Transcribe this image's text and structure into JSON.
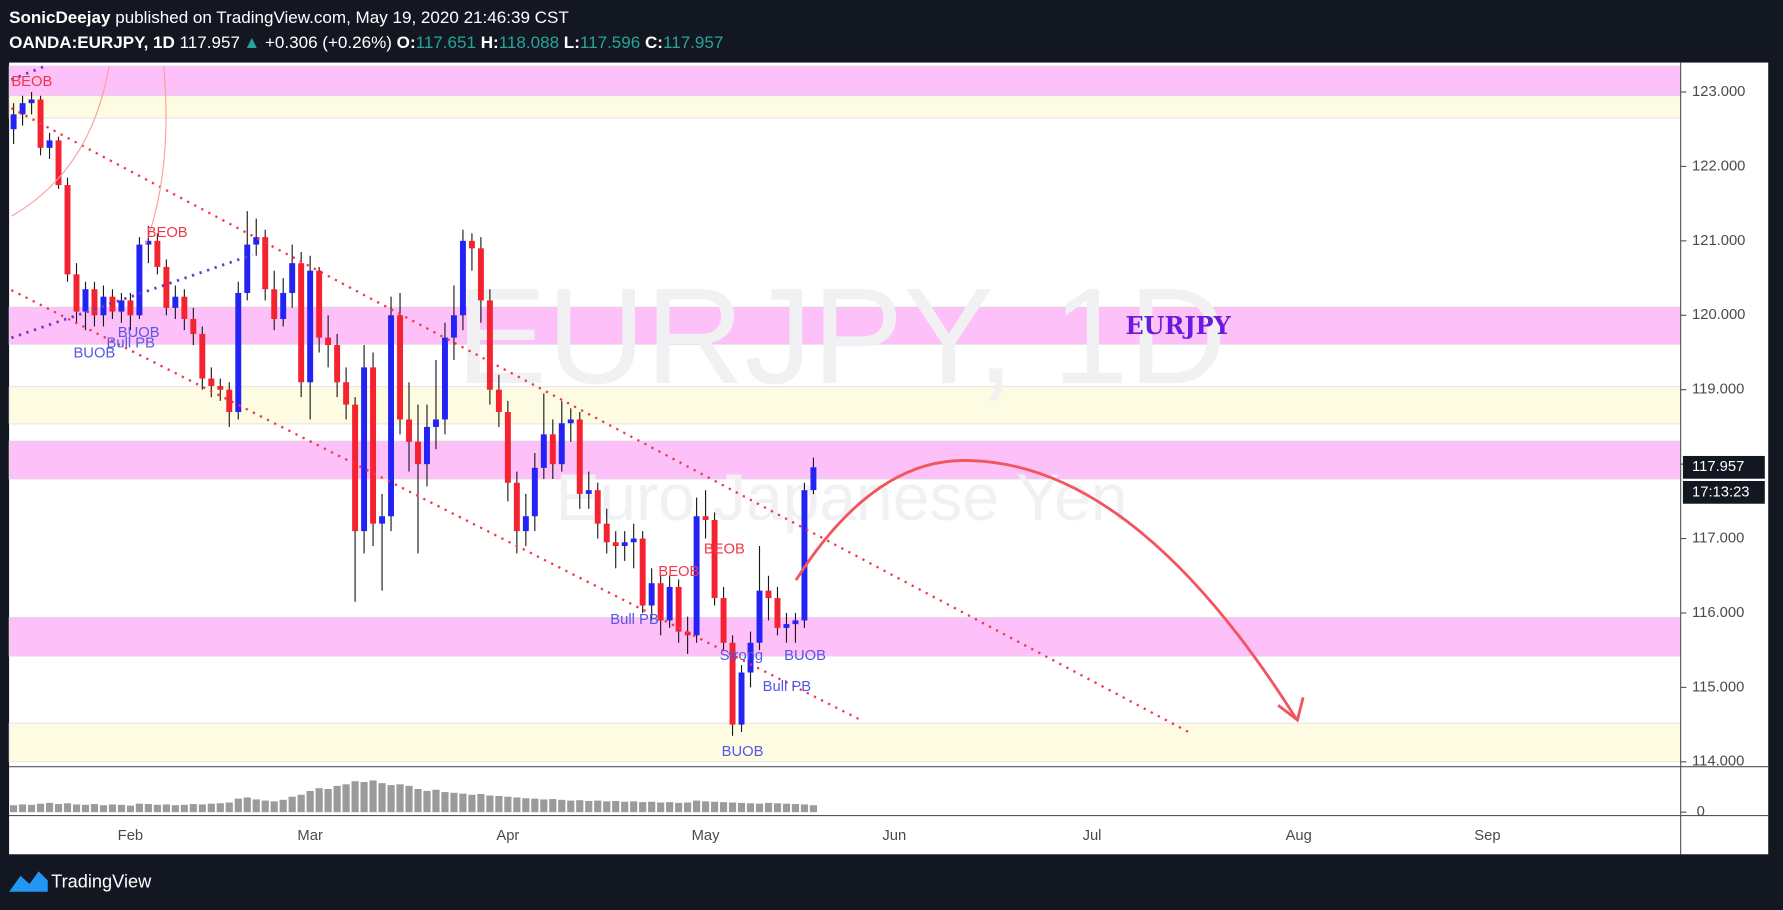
{
  "header": {
    "author": "SonicDeejay",
    "published": "published on TradingView.com, May 19, 2020 21:46:39 CST",
    "symbol": "OANDA:EURJPY, 1D",
    "arrow": "▲",
    "change": "+0.306 (+0.26%)",
    "o_label": "O:",
    "h_label": "H:",
    "l_label": "L:",
    "c_label": "C:"
  },
  "chart_data": {
    "type": "candlestick",
    "watermark": "EURJPY, 1D",
    "watermark_subtitle": "Euro Japanese Yen",
    "up_color": "#2323f5",
    "down_color": "#f5222f",
    "wick_color": "#1a1a1a",
    "volume_color": "#9b9b9b",
    "ylim": [
      113.95,
      123.35
    ],
    "yticks": [
      {
        "value": 114,
        "label": "114.000"
      },
      {
        "value": 115,
        "label": "115.000"
      },
      {
        "value": 116,
        "label": "116.000"
      },
      {
        "value": 117,
        "label": "117.000"
      },
      {
        "value": 118,
        "label": "118.000"
      },
      {
        "value": 119,
        "label": "119.000"
      },
      {
        "value": 120,
        "label": "120.000"
      },
      {
        "value": 121,
        "label": "121.000"
      },
      {
        "value": 122,
        "label": "122.000"
      },
      {
        "value": 123,
        "label": "123.000"
      }
    ],
    "volume_ylim": [
      0,
      100
    ],
    "volume_yticks": [
      0
    ],
    "grid": false,
    "countdown": "17:13:23",
    "zones": [
      {
        "from": 122.95,
        "to": 123.35,
        "color": "#fdc0f8"
      },
      {
        "from": 122.65,
        "to": 122.95,
        "color": "#fdfce2"
      },
      {
        "from": 119.61,
        "to": 120.11,
        "color": "#fdc0f8"
      },
      {
        "from": 118.54,
        "to": 119.04,
        "color": "#fdfce2"
      },
      {
        "from": 117.8,
        "to": 118.31,
        "color": "#fdc0f8"
      },
      {
        "from": 115.42,
        "to": 115.94,
        "color": "#fdc0f8"
      },
      {
        "from": 114.0,
        "to": 114.52,
        "color": "#fdfce2"
      }
    ],
    "annotations": [
      {
        "text": "BEOB",
        "color": "#f23645"
      },
      {
        "text": "BEOB",
        "color": "#f23645"
      },
      {
        "text": "BUOB",
        "color": "#5656e8"
      },
      {
        "text": "Bull PB",
        "color": "#5656e8"
      },
      {
        "text": "BUOB",
        "color": "#5656e8"
      },
      {
        "text": "BEOB",
        "color": "#f23645"
      },
      {
        "text": "BEOB",
        "color": "#f23645"
      },
      {
        "text": "Bull PB",
        "color": "#5656e8"
      },
      {
        "text": "Strong",
        "color": "#5656e8"
      },
      {
        "text": "BUOB",
        "color": "#5656e8"
      },
      {
        "text": "Bull PB",
        "color": "#5656e8"
      },
      {
        "text": "BUOB",
        "color": "#5656e8"
      },
      {
        "text": "EURJPY",
        "color": "#6a1be0"
      }
    ],
    "categories": [
      null,
      null,
      null,
      null,
      null,
      null,
      null,
      null,
      null,
      null,
      null,
      null,
      null,
      "Feb",
      null,
      null,
      null,
      null,
      null,
      null,
      null,
      null,
      null,
      null,
      null,
      null,
      null,
      null,
      null,
      null,
      null,
      null,
      null,
      "Mar",
      null,
      null,
      null,
      null,
      null,
      null,
      null,
      null,
      null,
      null,
      null,
      null,
      null,
      null,
      null,
      null,
      null,
      null,
      null,
      null,
      null,
      "Apr",
      null,
      null,
      null,
      null,
      null,
      null,
      null,
      null,
      null,
      null,
      null,
      null,
      null,
      null,
      null,
      null,
      null,
      null,
      null,
      null,
      null,
      "May",
      null,
      null,
      null,
      null,
      null,
      null,
      null,
      null,
      null,
      null,
      null,
      null,
      null,
      null,
      null,
      null,
      null,
      null,
      null,
      null,
      "Jun",
      null,
      null,
      null,
      null,
      null,
      null,
      null,
      null,
      null,
      null,
      null,
      null,
      null,
      null,
      null,
      null,
      null,
      null,
      null,
      null,
      null,
      "Jul",
      null,
      null,
      null,
      null,
      null,
      null,
      null,
      null,
      null,
      null,
      null,
      null,
      null,
      null,
      null,
      null,
      null,
      null,
      null,
      null,
      null,
      null,
      "Aug",
      null,
      null,
      null,
      null,
      null,
      null,
      null,
      null,
      null,
      null,
      null,
      null,
      null,
      null,
      null,
      null,
      null,
      null,
      null,
      null,
      "Sep",
      null,
      null,
      null,
      null,
      null,
      null,
      null,
      null,
      null,
      null,
      null,
      null,
      null,
      null,
      null,
      null,
      null,
      null,
      null,
      null,
      null
    ],
    "open": [
      122.5,
      122.7,
      122.85,
      122.9,
      122.25,
      122.35,
      121.75,
      120.55,
      120.05,
      120.35,
      120.0,
      120.25,
      120.05,
      120.2,
      120.0,
      120.95,
      121.0,
      120.65,
      120.1,
      120.25,
      119.95,
      119.75,
      119.15,
      119.05,
      119.0,
      118.7,
      120.3,
      120.95,
      121.05,
      120.35,
      119.95,
      120.3,
      120.7,
      119.1,
      120.6,
      119.7,
      119.6,
      119.1,
      118.8,
      117.1,
      119.3,
      117.2,
      117.3,
      120.0,
      118.6,
      118.3,
      118.0,
      118.5,
      118.6,
      119.7,
      120.0,
      121.0,
      120.9,
      120.2,
      119.0,
      118.7,
      117.75,
      117.1,
      117.3,
      117.95,
      118.4,
      118.0,
      118.55,
      118.6,
      117.6,
      117.65,
      117.2,
      116.95,
      116.9,
      116.95,
      117.0,
      116.1,
      116.4,
      115.9,
      116.35,
      115.75,
      115.7,
      117.3,
      117.25,
      116.2,
      115.6,
      114.5,
      115.2,
      115.6,
      116.3,
      116.2,
      115.8,
      115.85,
      115.9,
      117.651,
      null,
      null,
      null,
      null,
      null,
      null,
      null,
      null,
      null,
      null,
      null,
      null,
      null,
      null,
      null,
      null,
      null,
      null,
      null,
      null,
      null,
      null,
      null,
      null,
      null,
      null,
      null,
      null,
      null,
      null,
      null,
      null,
      null,
      null,
      null,
      null,
      null,
      null,
      null,
      null,
      null,
      null,
      null,
      null,
      null,
      null,
      null,
      null,
      null,
      null,
      null,
      null,
      null,
      null,
      null,
      null,
      null,
      null,
      null,
      null,
      null,
      null,
      null,
      null,
      null,
      null,
      null,
      null,
      null,
      null,
      null,
      null,
      null,
      null,
      null,
      null,
      null,
      null,
      null,
      null,
      null,
      null,
      null,
      null,
      null,
      null,
      null,
      null,
      null,
      null,
      null,
      null,
      null,
      null,
      null,
      null
    ],
    "high": [
      122.85,
      122.95,
      123.0,
      122.95,
      122.45,
      122.4,
      121.85,
      120.7,
      120.45,
      120.45,
      120.4,
      120.35,
      120.3,
      120.3,
      121.05,
      121.2,
      121.1,
      120.75,
      120.4,
      120.35,
      120.1,
      119.85,
      119.3,
      119.15,
      119.1,
      120.45,
      121.4,
      121.3,
      121.15,
      120.6,
      120.5,
      120.95,
      120.85,
      120.8,
      120.65,
      120.0,
      119.75,
      119.3,
      118.9,
      119.6,
      119.5,
      117.6,
      120.25,
      120.3,
      119.1,
      118.8,
      118.8,
      119.4,
      119.9,
      120.4,
      121.15,
      121.1,
      121.05,
      120.35,
      119.2,
      118.85,
      117.9,
      117.6,
      118.15,
      118.95,
      118.6,
      118.85,
      118.75,
      118.7,
      117.9,
      117.75,
      117.4,
      117.1,
      117.1,
      117.2,
      117.1,
      116.6,
      116.5,
      116.5,
      116.45,
      115.95,
      117.55,
      117.65,
      117.35,
      116.35,
      115.7,
      115.3,
      115.75,
      116.9,
      116.5,
      116.35,
      116.0,
      116.0,
      117.75,
      118.088,
      null,
      null,
      null,
      null,
      null,
      null,
      null,
      null,
      null,
      null,
      null,
      null,
      null,
      null,
      null,
      null,
      null,
      null,
      null,
      null,
      null,
      null,
      null,
      null,
      null,
      null,
      null,
      null,
      null,
      null,
      null,
      null,
      null,
      null,
      null,
      null,
      null,
      null,
      null,
      null,
      null,
      null,
      null,
      null,
      null,
      null,
      null,
      null,
      null,
      null,
      null,
      null,
      null,
      null,
      null,
      null,
      null,
      null,
      null,
      null,
      null,
      null,
      null,
      null,
      null,
      null,
      null,
      null,
      null,
      null,
      null,
      null,
      null,
      null,
      null,
      null,
      null,
      null,
      null,
      null,
      null,
      null,
      null,
      null,
      null,
      null,
      null,
      null,
      null,
      null,
      null,
      null,
      null,
      null,
      null,
      null
    ],
    "low": [
      122.3,
      122.55,
      122.7,
      122.15,
      122.1,
      121.7,
      120.45,
      119.9,
      119.8,
      119.85,
      119.85,
      119.95,
      119.9,
      119.8,
      119.95,
      120.7,
      120.55,
      120.0,
      119.95,
      119.8,
      119.6,
      119.0,
      118.9,
      118.85,
      118.5,
      118.6,
      120.2,
      120.8,
      120.2,
      119.8,
      119.85,
      120.1,
      118.9,
      118.6,
      119.5,
      119.3,
      118.9,
      118.6,
      116.15,
      116.8,
      116.9,
      116.3,
      117.1,
      118.4,
      117.9,
      116.8,
      117.7,
      118.2,
      118.4,
      119.4,
      119.8,
      120.6,
      119.9,
      118.8,
      118.5,
      117.5,
      116.8,
      116.9,
      117.1,
      117.8,
      117.8,
      117.9,
      118.3,
      117.4,
      117.4,
      117.0,
      116.8,
      116.6,
      116.7,
      116.6,
      116.0,
      115.9,
      115.7,
      115.8,
      115.6,
      115.45,
      115.6,
      117.0,
      116.1,
      115.5,
      114.35,
      114.4,
      115.0,
      115.5,
      115.9,
      115.7,
      115.6,
      115.6,
      115.8,
      117.596,
      null,
      null,
      null,
      null,
      null,
      null,
      null,
      null,
      null,
      null,
      null,
      null,
      null,
      null,
      null,
      null,
      null,
      null,
      null,
      null,
      null,
      null,
      null,
      null,
      null,
      null,
      null,
      null,
      null,
      null,
      null,
      null,
      null,
      null,
      null,
      null,
      null,
      null,
      null,
      null,
      null,
      null,
      null,
      null,
      null,
      null,
      null,
      null,
      null,
      null,
      null,
      null,
      null,
      null,
      null,
      null,
      null,
      null,
      null,
      null,
      null,
      null,
      null,
      null,
      null,
      null,
      null,
      null,
      null,
      null,
      null,
      null,
      null,
      null,
      null,
      null,
      null,
      null,
      null,
      null,
      null,
      null,
      null,
      null,
      null,
      null,
      null,
      null,
      null,
      null,
      null,
      null,
      null,
      null,
      null,
      null
    ],
    "close": [
      122.7,
      122.85,
      122.9,
      122.25,
      122.35,
      121.75,
      120.55,
      120.05,
      120.35,
      120.0,
      120.25,
      120.05,
      120.2,
      120.0,
      120.95,
      121.0,
      120.65,
      120.1,
      120.25,
      119.95,
      119.75,
      119.15,
      119.05,
      119.0,
      118.7,
      120.3,
      120.95,
      121.05,
      120.35,
      119.95,
      120.3,
      120.7,
      119.1,
      120.6,
      119.7,
      119.6,
      119.1,
      118.8,
      117.1,
      119.3,
      117.2,
      117.3,
      120.0,
      118.6,
      118.3,
      118.0,
      118.5,
      118.6,
      119.7,
      120.0,
      121.0,
      120.9,
      120.2,
      119.0,
      118.7,
      117.75,
      117.1,
      117.3,
      117.95,
      118.4,
      118.0,
      118.55,
      118.6,
      117.6,
      117.65,
      117.2,
      116.95,
      116.9,
      116.95,
      117.0,
      116.1,
      116.4,
      115.9,
      116.35,
      115.75,
      115.7,
      117.3,
      117.25,
      116.2,
      115.6,
      114.5,
      115.2,
      115.6,
      116.3,
      116.2,
      115.8,
      115.85,
      115.9,
      117.65,
      117.957,
      null,
      null,
      null,
      null,
      null,
      null,
      null,
      null,
      null,
      null,
      null,
      null,
      null,
      null,
      null,
      null,
      null,
      null,
      null,
      null,
      null,
      null,
      null,
      null,
      null,
      null,
      null,
      null,
      null,
      null,
      null,
      null,
      null,
      null,
      null,
      null,
      null,
      null,
      null,
      null,
      null,
      null,
      null,
      null,
      null,
      null,
      null,
      null,
      null,
      null,
      null,
      null,
      null,
      null,
      null,
      null,
      null,
      null,
      null,
      null,
      null,
      null,
      null,
      null,
      null,
      null,
      null,
      null,
      null,
      null,
      null,
      null,
      null,
      null,
      null,
      null,
      null,
      null,
      null,
      null,
      null,
      null,
      null,
      null,
      null,
      null,
      null,
      null,
      null,
      null,
      null,
      null,
      null,
      null,
      null,
      null
    ],
    "volume": [
      18,
      20,
      19,
      22,
      24,
      21,
      23,
      20,
      19,
      21,
      18,
      20,
      19,
      17,
      22,
      21,
      19,
      20,
      18,
      19,
      21,
      20,
      22,
      23,
      25,
      35,
      38,
      33,
      30,
      28,
      32,
      40,
      45,
      55,
      62,
      60,
      68,
      72,
      80,
      78,
      82,
      75,
      70,
      72,
      68,
      60,
      55,
      58,
      52,
      50,
      48,
      45,
      47,
      43,
      42,
      40,
      38,
      36,
      35,
      33,
      34,
      32,
      30,
      31,
      29,
      30,
      28,
      29,
      27,
      28,
      26,
      27,
      25,
      26,
      24,
      25,
      30,
      28,
      27,
      26,
      25,
      24,
      23,
      22,
      24,
      23,
      22,
      21,
      20,
      18,
      null,
      null,
      null,
      null,
      null,
      null,
      null,
      null,
      null,
      null,
      null,
      null,
      null,
      null,
      null,
      null,
      null,
      null,
      null,
      null,
      null,
      null,
      null,
      null,
      null,
      null,
      null,
      null,
      null,
      null,
      null,
      null,
      null,
      null,
      null,
      null,
      null,
      null,
      null,
      null,
      null,
      null,
      null,
      null,
      null,
      null,
      null,
      null,
      null,
      null,
      null,
      null,
      null,
      null,
      null,
      null,
      null,
      null,
      null,
      null,
      null,
      null,
      null,
      null,
      null,
      null,
      null,
      null,
      null,
      null,
      null,
      null,
      null,
      null,
      null,
      null,
      null,
      null,
      null,
      null,
      null,
      null,
      null,
      null,
      null,
      null,
      null,
      null,
      null,
      null,
      null,
      null,
      null,
      null,
      null,
      null
    ]
  },
  "footer": {
    "brand": "TradingView"
  }
}
